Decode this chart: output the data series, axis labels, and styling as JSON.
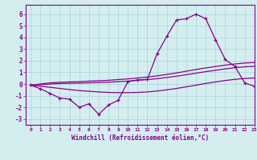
{
  "x": [
    0,
    1,
    2,
    3,
    4,
    5,
    6,
    7,
    8,
    9,
    10,
    11,
    12,
    13,
    14,
    15,
    16,
    17,
    18,
    19,
    20,
    21,
    22,
    23
  ],
  "windchill": [
    -0.1,
    -0.4,
    -0.8,
    -1.2,
    -1.3,
    -2.0,
    -1.7,
    -2.6,
    -1.8,
    -1.4,
    0.2,
    0.35,
    0.4,
    2.6,
    4.1,
    5.5,
    5.6,
    6.0,
    5.6,
    3.8,
    2.1,
    1.5,
    0.1,
    -0.2
  ],
  "line_top": [
    -0.1,
    0.0,
    0.1,
    0.15,
    0.18,
    0.2,
    0.25,
    0.28,
    0.32,
    0.38,
    0.44,
    0.52,
    0.6,
    0.7,
    0.82,
    0.95,
    1.1,
    1.25,
    1.38,
    1.5,
    1.62,
    1.72,
    1.8,
    1.85
  ],
  "line_mid": [
    -0.1,
    -0.05,
    0.0,
    0.04,
    0.06,
    0.08,
    0.1,
    0.13,
    0.16,
    0.2,
    0.25,
    0.32,
    0.38,
    0.46,
    0.56,
    0.67,
    0.8,
    0.93,
    1.06,
    1.18,
    1.3,
    1.4,
    1.48,
    1.52
  ],
  "line_bot": [
    -0.1,
    -0.18,
    -0.28,
    -0.38,
    -0.48,
    -0.56,
    -0.62,
    -0.68,
    -0.72,
    -0.74,
    -0.74,
    -0.72,
    -0.68,
    -0.6,
    -0.5,
    -0.38,
    -0.24,
    -0.1,
    0.05,
    0.18,
    0.3,
    0.4,
    0.48,
    0.52
  ],
  "color": "#880088",
  "bg_color": "#d4eef0",
  "grid_color": "#a8d4d8",
  "xlabel": "Windchill (Refroidissement éolien,°C)",
  "ylim": [
    -3.5,
    6.8
  ],
  "xlim": [
    -0.5,
    23
  ],
  "yticks": [
    -3,
    -2,
    -1,
    0,
    1,
    2,
    3,
    4,
    5,
    6
  ],
  "xticks": [
    0,
    1,
    2,
    3,
    4,
    5,
    6,
    7,
    8,
    9,
    10,
    11,
    12,
    13,
    14,
    15,
    16,
    17,
    18,
    19,
    20,
    21,
    22,
    23
  ]
}
